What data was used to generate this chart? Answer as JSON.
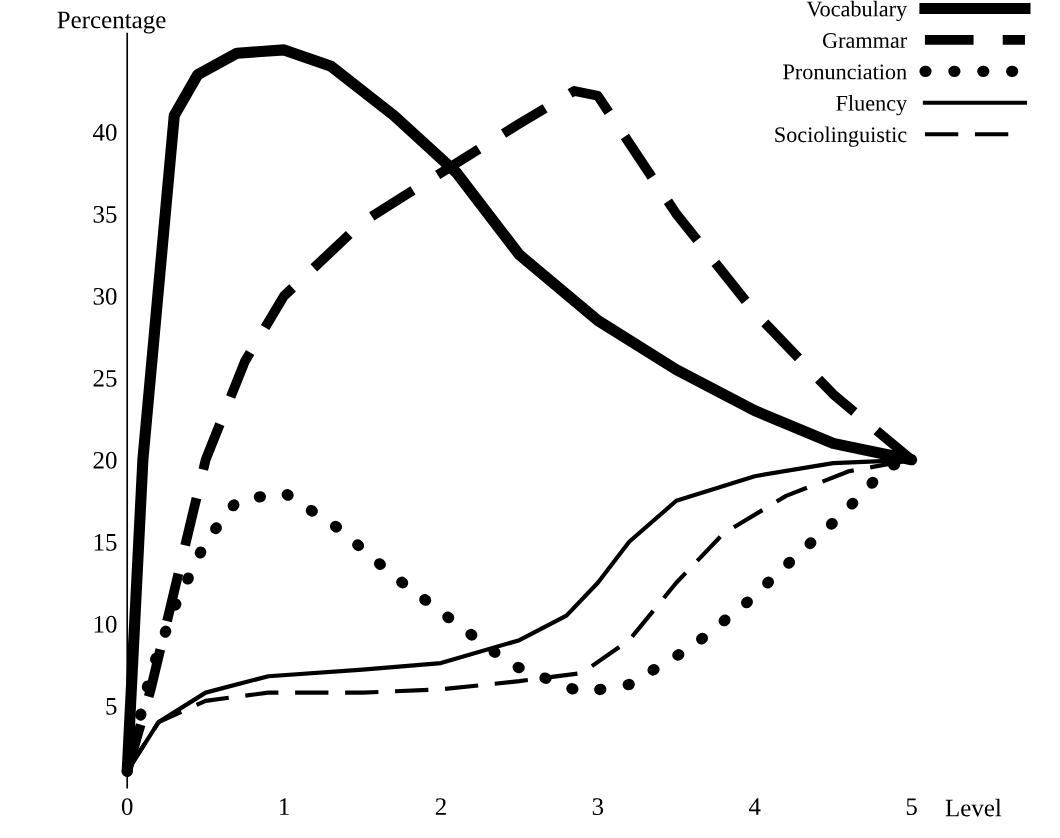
{
  "chart_data": {
    "type": "line",
    "xlabel": "Level",
    "ylabel": "Percentage",
    "xlim": [
      0,
      5
    ],
    "ylim": [
      0,
      46
    ],
    "xticks": [
      0,
      1,
      2,
      3,
      4,
      5
    ],
    "yticks": [
      5,
      10,
      15,
      20,
      25,
      30,
      35,
      40
    ],
    "grid": false,
    "legend": "top right",
    "marker": "none",
    "series": [
      {
        "name": "Vocabulary",
        "color": "#000000",
        "line_style": "solid",
        "x": [
          0,
          0.1,
          0.3,
          0.45,
          0.7,
          1.0,
          1.3,
          1.7,
          2.1,
          2.5,
          3,
          3.5,
          4,
          4.5,
          5
        ],
        "values": [
          1,
          20,
          41,
          43.5,
          44.8,
          45,
          44,
          41,
          37.5,
          32.5,
          28.5,
          25.5,
          23,
          21,
          20
        ]
      },
      {
        "name": "Grammar",
        "color": "#000000",
        "line_style": "dashed",
        "x": [
          0,
          0.15,
          0.3,
          0.5,
          0.75,
          1,
          1.5,
          2,
          2.5,
          2.85,
          3,
          3.5,
          4,
          4.5,
          5
        ],
        "values": [
          1,
          6,
          12,
          20,
          26,
          30,
          34.5,
          37.5,
          40.5,
          42.5,
          42.2,
          35,
          29,
          24,
          20
        ]
      },
      {
        "name": "Pronunciation",
        "color": "#000000",
        "line_style": "dotted",
        "x": [
          0,
          0.15,
          0.3,
          0.5,
          0.7,
          1,
          1.35,
          1.7,
          2.1,
          2.45,
          2.9,
          3.2,
          3.6,
          3.95,
          4.25,
          4.55,
          4.85,
          5
        ],
        "values": [
          1,
          7,
          11,
          15,
          17.5,
          18,
          15.8,
          12.9,
          10,
          7.5,
          5.8,
          6.3,
          8.6,
          11.3,
          14,
          16.6,
          19.6,
          20
        ]
      },
      {
        "name": "Fluency",
        "color": "#000000",
        "line_style": "solid",
        "x": [
          0,
          0.2,
          0.5,
          0.9,
          1.5,
          2,
          2.5,
          2.8,
          3,
          3.2,
          3.5,
          4,
          4.5,
          5
        ],
        "values": [
          1,
          4,
          5.8,
          6.8,
          7.2,
          7.6,
          9,
          10.5,
          12.5,
          15,
          17.5,
          19,
          19.8,
          20
        ]
      },
      {
        "name": "Sociolinguistic",
        "color": "#000000",
        "line_style": "dashed",
        "x": [
          0,
          0.2,
          0.5,
          0.9,
          1.5,
          2,
          2.5,
          2.9,
          3.2,
          3.5,
          3.8,
          4.2,
          4.6,
          5
        ],
        "values": [
          1,
          4,
          5.3,
          5.8,
          5.8,
          6,
          6.5,
          7,
          9,
          12.5,
          15.5,
          17.8,
          19.3,
          20
        ]
      }
    ]
  }
}
